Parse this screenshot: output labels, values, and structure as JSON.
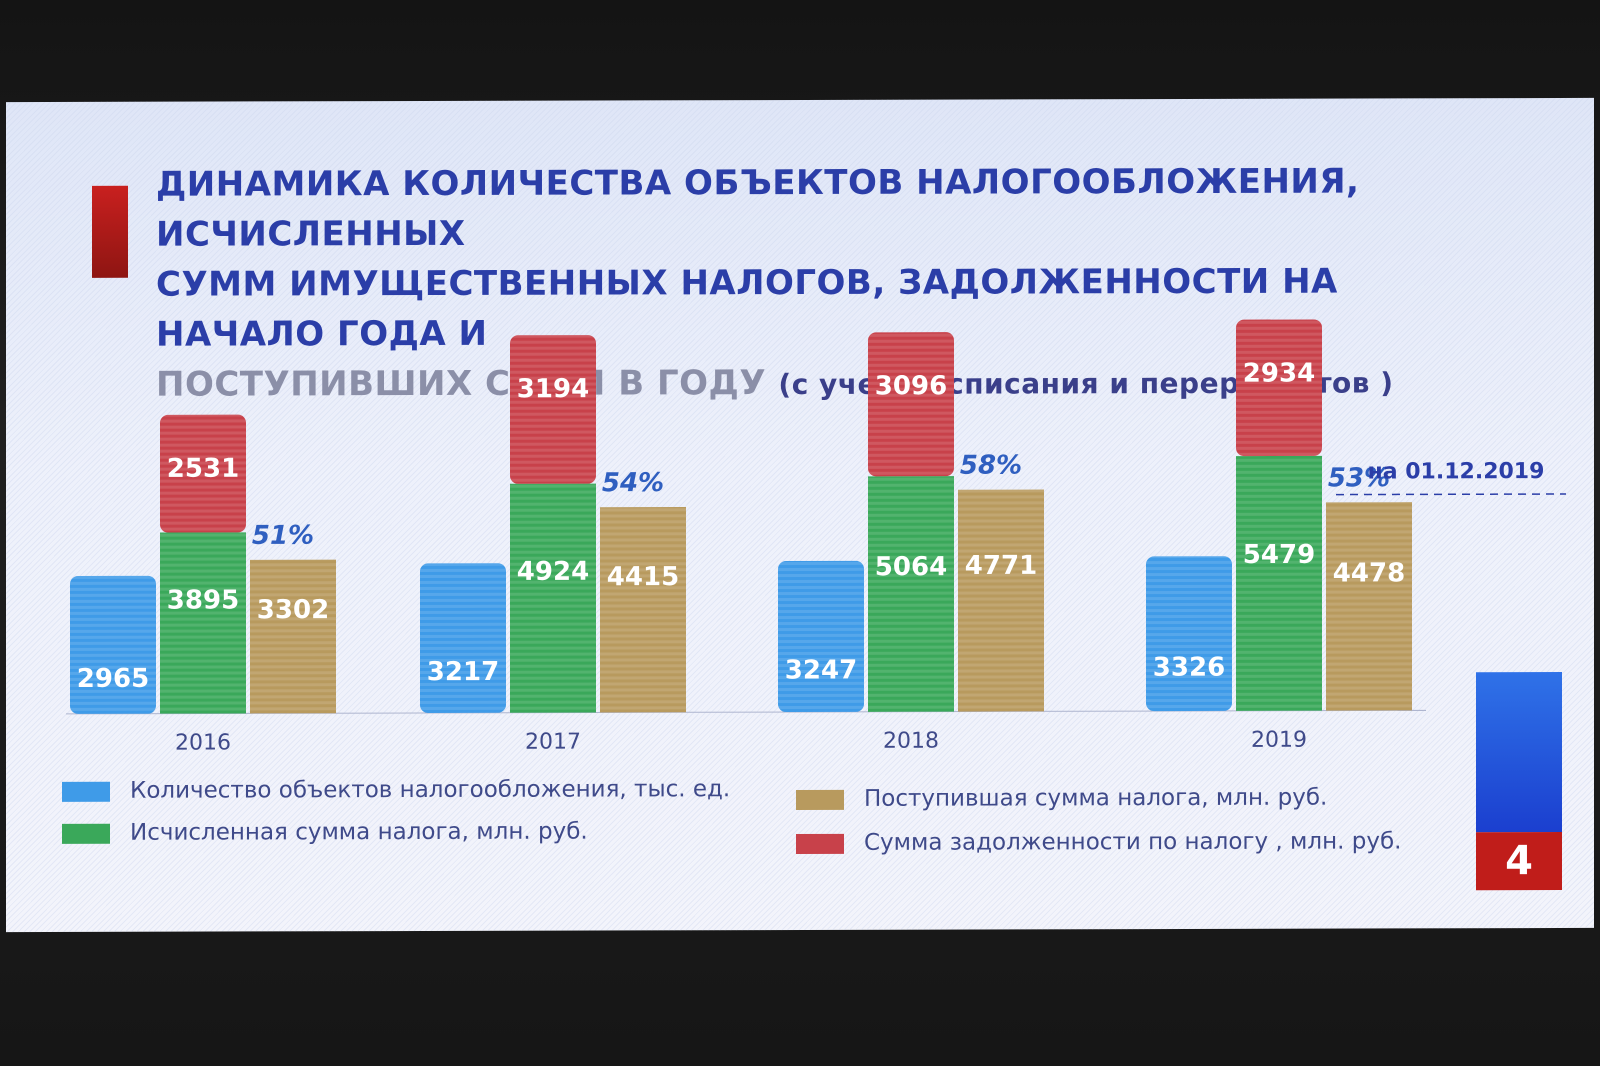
{
  "title": {
    "line1": "ДИНАМИКА КОЛИЧЕСТВА ОБЪЕКТОВ НАЛОГООБЛОЖЕНИЯ, ИСЧИСЛЕННЫХ",
    "line2": "СУММ ИМУЩЕСТВЕННЫХ НАЛОГОВ, ЗАДОЛЖЕННОСТИ  НА НАЧАЛО ГОДА И",
    "line3": "ПОСТУПИВШИХ  СУММ В ГОДУ",
    "line3_note": "(с учетом списания и перерасчетов )"
  },
  "page_number": "4",
  "date_note": "на 01.12.2019",
  "colors": {
    "objects": "#3f9be8",
    "calculated": "#3aa85a",
    "received": "#b89a5e",
    "debt": "#c8414a",
    "text": "#2b3ea8"
  },
  "legend": [
    {
      "key": "objects",
      "label": "Количество объектов налогообложения, тыс. ед."
    },
    {
      "key": "calculated",
      "label": "Исчисленная сумма налога, млн. руб."
    },
    {
      "key": "received",
      "label": "Поступившая сумма налога, млн. руб."
    },
    {
      "key": "debt",
      "label": "Сумма задолженности по налогу , млн. руб."
    }
  ],
  "chart_data": {
    "type": "bar",
    "categories": [
      "2016",
      "2017",
      "2018",
      "2019"
    ],
    "series": [
      {
        "name": "Количество объектов налогообложения, тыс. ед.",
        "key": "objects",
        "values": [
          2965,
          3217,
          3247,
          3326
        ]
      },
      {
        "name": "Исчисленная сумма налога, млн. руб.",
        "key": "calculated",
        "values": [
          3895,
          4924,
          5064,
          5479
        ],
        "stack": "a"
      },
      {
        "name": "Сумма задолженности по налогу , млн. руб.",
        "key": "debt",
        "values": [
          2531,
          3194,
          3096,
          2934
        ],
        "stack": "a"
      },
      {
        "name": "Поступившая сумма налога, млн. руб.",
        "key": "received",
        "values": [
          3302,
          4415,
          4771,
          4478
        ]
      }
    ],
    "percent_labels": [
      "51%",
      "54%",
      "58%",
      "53%"
    ]
  }
}
